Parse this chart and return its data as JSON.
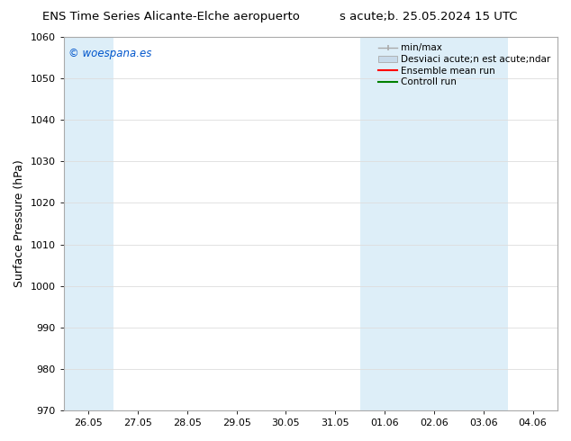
{
  "title_left": "ENS Time Series Alicante-Elche aeropuerto",
  "title_right": "s acute;b. 25.05.2024 15 UTC",
  "ylabel": "Surface Pressure (hPa)",
  "ylim": [
    970,
    1060
  ],
  "yticks": [
    970,
    980,
    990,
    1000,
    1010,
    1020,
    1030,
    1040,
    1050,
    1060
  ],
  "xlabel_ticks": [
    "26.05",
    "27.05",
    "28.05",
    "29.05",
    "30.05",
    "31.05",
    "01.06",
    "02.06",
    "03.06",
    "04.06"
  ],
  "shaded_indices": [
    0,
    6,
    7,
    8
  ],
  "watermark": "© woespana.es",
  "watermark_color": "#0055cc",
  "legend_labels": [
    "min/max",
    "Desviaci acute;n est acute;ndar",
    "Ensemble mean run",
    "Controll run"
  ],
  "legend_colors_line": [
    "#999999",
    "#bbccdd",
    "red",
    "green"
  ],
  "bg_color": "#ffffff",
  "grid_color": "#dddddd",
  "band_color": "#ddeef8",
  "title_fontsize": 9.5,
  "ylabel_fontsize": 9,
  "tick_fontsize": 8,
  "legend_fontsize": 7.5,
  "watermark_fontsize": 8.5
}
